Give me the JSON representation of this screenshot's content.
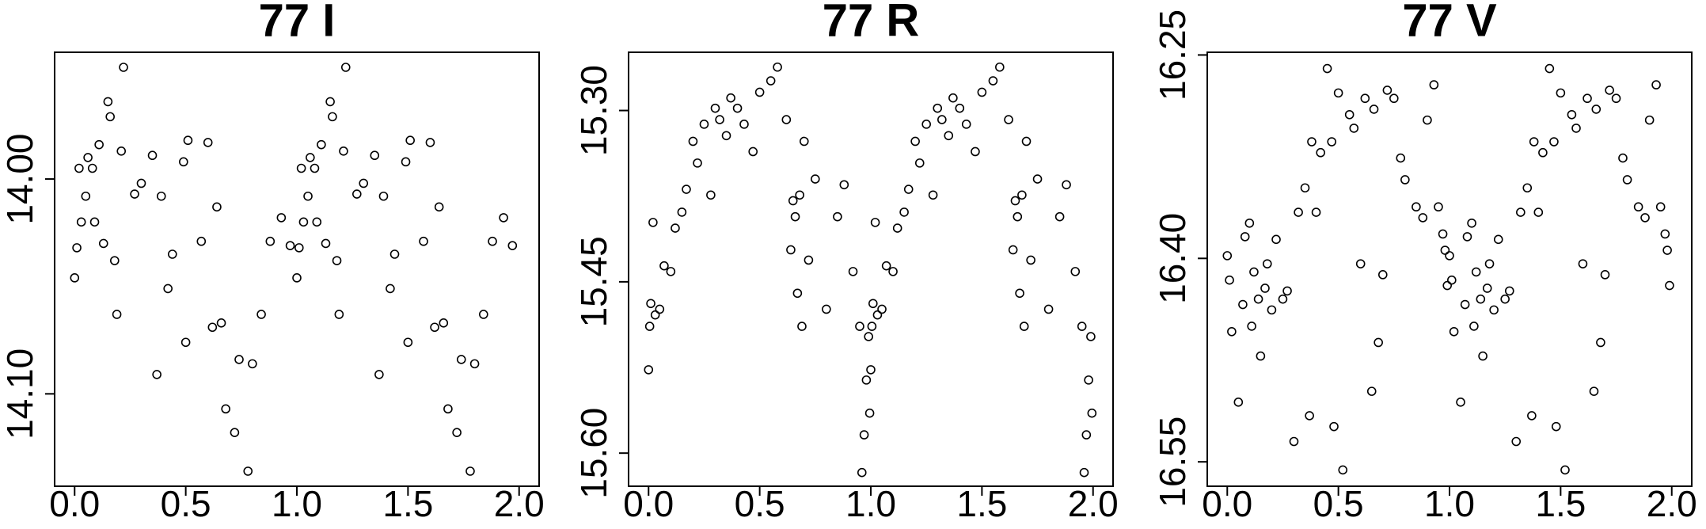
{
  "chart_data": [
    {
      "type": "scatter",
      "title": "77 I",
      "color": "#000000",
      "x": [
        0,
        0.01,
        0.02,
        0.03,
        0.05,
        0.06,
        0.08,
        0.09,
        0.11,
        0.13,
        0.15,
        0.16,
        0.18,
        0.19,
        0.21,
        0.22,
        0.27,
        0.3,
        0.35,
        0.37,
        0.39,
        0.42,
        0.44,
        0.49,
        0.5,
        0.51,
        0.57,
        0.6,
        0.62,
        0.64,
        0.66,
        0.68,
        0.72,
        0.74,
        0.78,
        0.8,
        0.84,
        0.88,
        0.93,
        0.97,
        1,
        1.01,
        1.02,
        1.03,
        1.05,
        1.06,
        1.08,
        1.09,
        1.11,
        1.13,
        1.15,
        1.16,
        1.18,
        1.19,
        1.21,
        1.22,
        1.27,
        1.3,
        1.35,
        1.37,
        1.39,
        1.42,
        1.44,
        1.49,
        1.5,
        1.51,
        1.57,
        1.6,
        1.62,
        1.64,
        1.66,
        1.68,
        1.72,
        1.74,
        1.78,
        1.8,
        1.84,
        1.88,
        1.93,
        1.97
      ],
      "values": [
        14.046,
        14.032,
        13.995,
        14.02,
        14.008,
        13.99,
        13.995,
        14.02,
        13.984,
        14.03,
        13.964,
        13.971,
        14.038,
        14.063,
        13.987,
        13.948,
        14.007,
        14.002,
        13.989,
        14.091,
        14.008,
        14.051,
        14.035,
        13.992,
        14.076,
        13.982,
        14.029,
        13.983,
        14.069,
        14.013,
        14.067,
        14.107,
        14.118,
        14.084,
        14.136,
        14.086,
        14.063,
        14.029,
        14.018,
        14.031,
        14.046,
        14.032,
        13.995,
        14.02,
        14.008,
        13.99,
        13.995,
        14.02,
        13.984,
        14.03,
        13.964,
        13.971,
        14.038,
        14.063,
        13.987,
        13.948,
        14.007,
        14.002,
        13.989,
        14.091,
        14.008,
        14.051,
        14.035,
        13.992,
        14.076,
        13.982,
        14.029,
        13.983,
        14.069,
        14.013,
        14.067,
        14.107,
        14.118,
        14.084,
        14.136,
        14.086,
        14.063,
        14.029,
        14.018,
        14.031
      ],
      "xlim": [
        -0.09,
        2.09
      ],
      "ylim": [
        14.143,
        13.941
      ],
      "xticks": [
        {
          "value": 0,
          "label": "0.0"
        },
        {
          "value": 0.5,
          "label": "0.5"
        },
        {
          "value": 1,
          "label": "1.0"
        },
        {
          "value": 1.5,
          "label": "1.5"
        },
        {
          "value": 2,
          "label": "2.0"
        }
      ],
      "yticks": [
        {
          "value": 14,
          "label": "14.00"
        },
        {
          "value": 14.1,
          "label": "14.10"
        }
      ]
    },
    {
      "type": "scatter",
      "title": "77 R",
      "color": "#000000",
      "x": [
        0,
        0.005,
        0.01,
        0.02,
        0.03,
        0.05,
        0.07,
        0.1,
        0.12,
        0.15,
        0.17,
        0.2,
        0.22,
        0.25,
        0.28,
        0.3,
        0.32,
        0.35,
        0.37,
        0.4,
        0.43,
        0.47,
        0.5,
        0.55,
        0.58,
        0.62,
        0.64,
        0.65,
        0.66,
        0.67,
        0.68,
        0.69,
        0.7,
        0.72,
        0.75,
        0.8,
        0.85,
        0.88,
        0.92,
        0.95,
        0.96,
        0.97,
        0.98,
        0.99,
        0.995,
        1,
        1.005,
        1.01,
        1.02,
        1.03,
        1.05,
        1.07,
        1.1,
        1.12,
        1.15,
        1.17,
        1.2,
        1.22,
        1.25,
        1.28,
        1.3,
        1.32,
        1.35,
        1.37,
        1.4,
        1.43,
        1.47,
        1.5,
        1.55,
        1.58,
        1.62,
        1.64,
        1.65,
        1.66,
        1.67,
        1.68,
        1.69,
        1.7,
        1.72,
        1.75,
        1.8,
        1.85,
        1.88,
        1.92,
        1.95,
        1.96,
        1.97,
        1.98,
        1.99,
        1.995
      ],
      "values": [
        15.527,
        15.489,
        15.469,
        15.398,
        15.479,
        15.474,
        15.436,
        15.441,
        15.403,
        15.389,
        15.369,
        15.327,
        15.346,
        15.312,
        15.374,
        15.298,
        15.308,
        15.322,
        15.289,
        15.298,
        15.312,
        15.336,
        15.284,
        15.274,
        15.262,
        15.308,
        15.422,
        15.379,
        15.393,
        15.46,
        15.374,
        15.489,
        15.327,
        15.431,
        15.36,
        15.474,
        15.393,
        15.365,
        15.441,
        15.489,
        15.617,
        15.584,
        15.536,
        15.498,
        15.565,
        15.527,
        15.489,
        15.469,
        15.398,
        15.479,
        15.474,
        15.436,
        15.441,
        15.403,
        15.389,
        15.369,
        15.327,
        15.346,
        15.312,
        15.374,
        15.298,
        15.308,
        15.322,
        15.289,
        15.298,
        15.312,
        15.336,
        15.284,
        15.274,
        15.262,
        15.308,
        15.422,
        15.379,
        15.393,
        15.46,
        15.374,
        15.489,
        15.327,
        15.431,
        15.36,
        15.474,
        15.393,
        15.365,
        15.441,
        15.489,
        15.617,
        15.584,
        15.536,
        15.498,
        15.565
      ],
      "xlim": [
        -0.09,
        2.09
      ],
      "ylim": [
        15.629,
        15.249
      ],
      "xticks": [
        {
          "value": 0,
          "label": "0.0"
        },
        {
          "value": 0.5,
          "label": "0.5"
        },
        {
          "value": 1,
          "label": "1.0"
        },
        {
          "value": 1.5,
          "label": "1.5"
        },
        {
          "value": 2,
          "label": "2.0"
        }
      ],
      "yticks": [
        {
          "value": 15.3,
          "label": "15.30"
        },
        {
          "value": 15.45,
          "label": "15.45"
        },
        {
          "value": 15.6,
          "label": "15.60"
        }
      ]
    },
    {
      "type": "scatter",
      "title": "77 V",
      "color": "#000000",
      "x": [
        0,
        0.01,
        0.02,
        0.05,
        0.07,
        0.08,
        0.1,
        0.11,
        0.12,
        0.14,
        0.15,
        0.17,
        0.18,
        0.2,
        0.22,
        0.25,
        0.27,
        0.3,
        0.32,
        0.35,
        0.37,
        0.38,
        0.4,
        0.42,
        0.45,
        0.47,
        0.48,
        0.5,
        0.52,
        0.55,
        0.57,
        0.6,
        0.62,
        0.65,
        0.66,
        0.68,
        0.7,
        0.72,
        0.75,
        0.78,
        0.8,
        0.85,
        0.88,
        0.9,
        0.93,
        0.95,
        0.97,
        0.98,
        0.99,
        1,
        1.01,
        1.02,
        1.05,
        1.07,
        1.08,
        1.1,
        1.11,
        1.12,
        1.14,
        1.15,
        1.17,
        1.18,
        1.2,
        1.22,
        1.25,
        1.27,
        1.3,
        1.32,
        1.35,
        1.37,
        1.38,
        1.4,
        1.42,
        1.45,
        1.47,
        1.48,
        1.5,
        1.52,
        1.55,
        1.57,
        1.6,
        1.62,
        1.65,
        1.66,
        1.68,
        1.7,
        1.72,
        1.75,
        1.78,
        1.8,
        1.85,
        1.88,
        1.9,
        1.93,
        1.95,
        1.97,
        1.98,
        1.99
      ],
      "values": [
        16.398,
        16.416,
        16.454,
        16.506,
        16.434,
        16.384,
        16.374,
        16.45,
        16.41,
        16.43,
        16.472,
        16.422,
        16.404,
        16.438,
        16.386,
        16.43,
        16.424,
        16.535,
        16.366,
        16.348,
        16.516,
        16.314,
        16.366,
        16.322,
        16.26,
        16.314,
        16.524,
        16.278,
        16.556,
        16.294,
        16.304,
        16.404,
        16.282,
        16.498,
        16.29,
        16.462,
        16.412,
        16.276,
        16.282,
        16.326,
        16.342,
        16.362,
        16.37,
        16.298,
        16.272,
        16.362,
        16.382,
        16.394,
        16.42,
        16.398,
        16.416,
        16.454,
        16.506,
        16.434,
        16.384,
        16.374,
        16.45,
        16.41,
        16.43,
        16.472,
        16.422,
        16.404,
        16.438,
        16.386,
        16.43,
        16.424,
        16.535,
        16.366,
        16.348,
        16.516,
        16.314,
        16.366,
        16.322,
        16.26,
        16.314,
        16.524,
        16.278,
        16.556,
        16.294,
        16.304,
        16.404,
        16.282,
        16.498,
        16.29,
        16.462,
        16.412,
        16.276,
        16.282,
        16.326,
        16.342,
        16.362,
        16.37,
        16.298,
        16.272,
        16.362,
        16.382,
        16.394,
        16.42
      ],
      "xlim": [
        -0.09,
        2.09
      ],
      "ylim": [
        16.568,
        16.248
      ],
      "xticks": [
        {
          "value": 0,
          "label": "0.0"
        },
        {
          "value": 0.5,
          "label": "0.5"
        },
        {
          "value": 1,
          "label": "1.0"
        },
        {
          "value": 1.5,
          "label": "1.5"
        },
        {
          "value": 2,
          "label": "2.0"
        }
      ],
      "yticks": [
        {
          "value": 16.25,
          "label": "16.25"
        },
        {
          "value": 16.4,
          "label": "16.40"
        },
        {
          "value": 16.55,
          "label": "16.55"
        }
      ]
    }
  ]
}
